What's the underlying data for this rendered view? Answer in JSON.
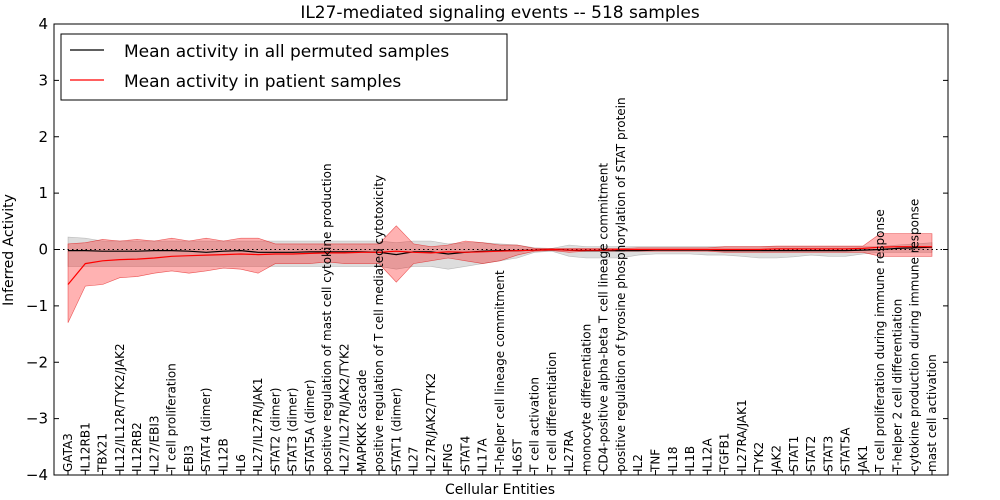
{
  "chart_data": {
    "type": "line",
    "title": "IL27-mediated signaling events -- 518 samples",
    "xlabel": "Cellular Entities",
    "ylabel": "Inferred Activity",
    "ylim": [
      -4,
      4
    ],
    "yticks": [
      4,
      3,
      2,
      1,
      0,
      -1,
      -2,
      -3,
      -4
    ],
    "ytick_labels": [
      "4",
      "3",
      "2",
      "1",
      "0",
      "−1",
      "−2",
      "−3",
      "−4"
    ],
    "grid": false,
    "zero_line": "dotted",
    "legend_position": "top-left",
    "categories": [
      "GATA3",
      "IL12RB1",
      "TBX21",
      "IL12/IL12R/TYK2/JAK2",
      "IL12RB2",
      "IL27/EBI3",
      "T cell proliferation",
      "EBI3",
      "STAT4 (dimer)",
      "IL12B",
      "IL6",
      "IL27/IL27R/JAK1",
      "STAT2 (dimer)",
      "STAT3 (dimer)",
      "STAT5A (dimer)",
      "positive regulation of mast cell cytokine production",
      "IL27/IL27R/JAK2/TYK2",
      "MAPKKK cascade",
      "positive regulation of T cell mediated cytotoxicity",
      "STAT1 (dimer)",
      "IL27",
      "IL27R/JAK2/TYK2",
      "IFNG",
      "STAT4",
      "IL17A",
      "T-helper cell lineage commitment",
      "IL6ST",
      "T cell activation",
      "T cell differentiation",
      "IL27RA",
      "monocyte differentiation",
      "CD4-positive alpha-beta T cell lineage commitment",
      "positive regulation of tyrosine phosphorylation of STAT protein",
      "IL2",
      "TNF",
      "IL18",
      "IL1B",
      "IL12A",
      "TGFB1",
      "IL27RA/JAK1",
      "TYK2",
      "JAK2",
      "STAT1",
      "STAT2",
      "STAT3",
      "STAT5A",
      "JAK1",
      "T cell proliferation during immune response",
      "T-helper 2 cell differentiation",
      "cytokine production during immune response",
      "mast cell activation"
    ],
    "series": [
      {
        "name": "Mean activity in all permuted samples",
        "color": "#000000",
        "band_color": "#bbbbbb",
        "values": [
          -0.02,
          -0.02,
          -0.03,
          -0.03,
          -0.03,
          -0.02,
          -0.02,
          -0.03,
          -0.05,
          -0.03,
          -0.02,
          -0.05,
          -0.05,
          -0.05,
          -0.04,
          -0.04,
          -0.04,
          -0.04,
          -0.05,
          -0.09,
          -0.04,
          -0.04,
          -0.08,
          -0.05,
          -0.03,
          -0.02,
          -0.02,
          -0.01,
          0.0,
          -0.01,
          -0.02,
          -0.02,
          -0.02,
          -0.02,
          -0.01,
          -0.01,
          -0.01,
          -0.01,
          -0.02,
          -0.02,
          -0.02,
          -0.02,
          -0.02,
          -0.02,
          -0.02,
          -0.02,
          -0.01,
          0.0,
          0.02,
          0.03,
          0.04
        ],
        "lower": [
          -0.3,
          -0.3,
          -0.3,
          -0.3,
          -0.3,
          -0.3,
          -0.3,
          -0.3,
          -0.3,
          -0.3,
          -0.3,
          -0.3,
          -0.3,
          -0.3,
          -0.3,
          -0.3,
          -0.3,
          -0.3,
          -0.3,
          -0.35,
          -0.3,
          -0.3,
          -0.35,
          -0.3,
          -0.25,
          -0.2,
          -0.15,
          -0.05,
          -0.03,
          -0.12,
          -0.15,
          -0.15,
          -0.15,
          -0.1,
          -0.08,
          -0.08,
          -0.08,
          -0.1,
          -0.1,
          -0.12,
          -0.15,
          -0.15,
          -0.13,
          -0.1,
          -0.12,
          -0.12,
          -0.08,
          -0.05,
          -0.05,
          -0.05,
          -0.05
        ],
        "upper": [
          0.22,
          0.2,
          0.15,
          0.15,
          0.15,
          0.15,
          0.15,
          0.15,
          0.15,
          0.15,
          0.15,
          0.15,
          0.15,
          0.15,
          0.15,
          0.15,
          0.15,
          0.15,
          0.15,
          0.12,
          0.15,
          0.15,
          0.1,
          0.12,
          0.12,
          0.1,
          0.08,
          0.03,
          0.02,
          0.08,
          0.05,
          0.05,
          0.05,
          0.05,
          0.05,
          0.05,
          0.05,
          0.05,
          0.05,
          0.05,
          0.05,
          0.05,
          0.05,
          0.05,
          0.05,
          0.05,
          0.05,
          0.05,
          0.08,
          0.1,
          0.12
        ]
      },
      {
        "name": "Mean activity in patient samples",
        "color": "#ff0000",
        "band_color": "#ff0000",
        "values": [
          -0.62,
          -0.25,
          -0.2,
          -0.18,
          -0.17,
          -0.15,
          -0.12,
          -0.11,
          -0.1,
          -0.09,
          -0.08,
          -0.09,
          -0.08,
          -0.08,
          -0.07,
          -0.06,
          -0.06,
          -0.05,
          -0.05,
          -0.03,
          -0.05,
          -0.06,
          -0.04,
          -0.05,
          -0.04,
          -0.03,
          -0.02,
          -0.01,
          0.0,
          -0.01,
          -0.01,
          -0.01,
          0.0,
          0.0,
          0.0,
          0.0,
          0.0,
          0.0,
          0.0,
          0.0,
          0.0,
          0.01,
          0.01,
          0.01,
          0.01,
          0.01,
          0.02,
          0.04,
          0.05,
          0.05,
          0.05
        ],
        "lower": [
          -1.3,
          -0.65,
          -0.62,
          -0.5,
          -0.48,
          -0.42,
          -0.38,
          -0.42,
          -0.38,
          -0.33,
          -0.35,
          -0.42,
          -0.25,
          -0.25,
          -0.25,
          -0.22,
          -0.25,
          -0.25,
          -0.25,
          -0.58,
          -0.25,
          -0.2,
          -0.15,
          -0.2,
          -0.25,
          -0.2,
          -0.1,
          -0.03,
          -0.02,
          -0.05,
          -0.03,
          -0.03,
          -0.03,
          -0.03,
          -0.03,
          -0.03,
          -0.03,
          -0.03,
          -0.05,
          -0.05,
          -0.05,
          -0.05,
          -0.05,
          -0.05,
          -0.05,
          -0.05,
          -0.05,
          -0.12,
          -0.12,
          -0.12,
          -0.12
        ],
        "upper": [
          0.1,
          0.12,
          0.18,
          0.15,
          0.18,
          0.15,
          0.2,
          0.15,
          0.2,
          0.15,
          0.2,
          0.2,
          0.1,
          0.1,
          0.1,
          0.1,
          0.1,
          0.1,
          0.1,
          0.42,
          0.1,
          0.05,
          0.08,
          0.15,
          0.12,
          0.08,
          0.08,
          0.02,
          0.02,
          0.02,
          0.02,
          0.02,
          0.02,
          0.03,
          0.03,
          0.03,
          0.03,
          0.03,
          0.05,
          0.05,
          0.05,
          0.06,
          0.06,
          0.06,
          0.06,
          0.06,
          0.06,
          0.28,
          0.28,
          0.28,
          0.28
        ]
      }
    ]
  }
}
